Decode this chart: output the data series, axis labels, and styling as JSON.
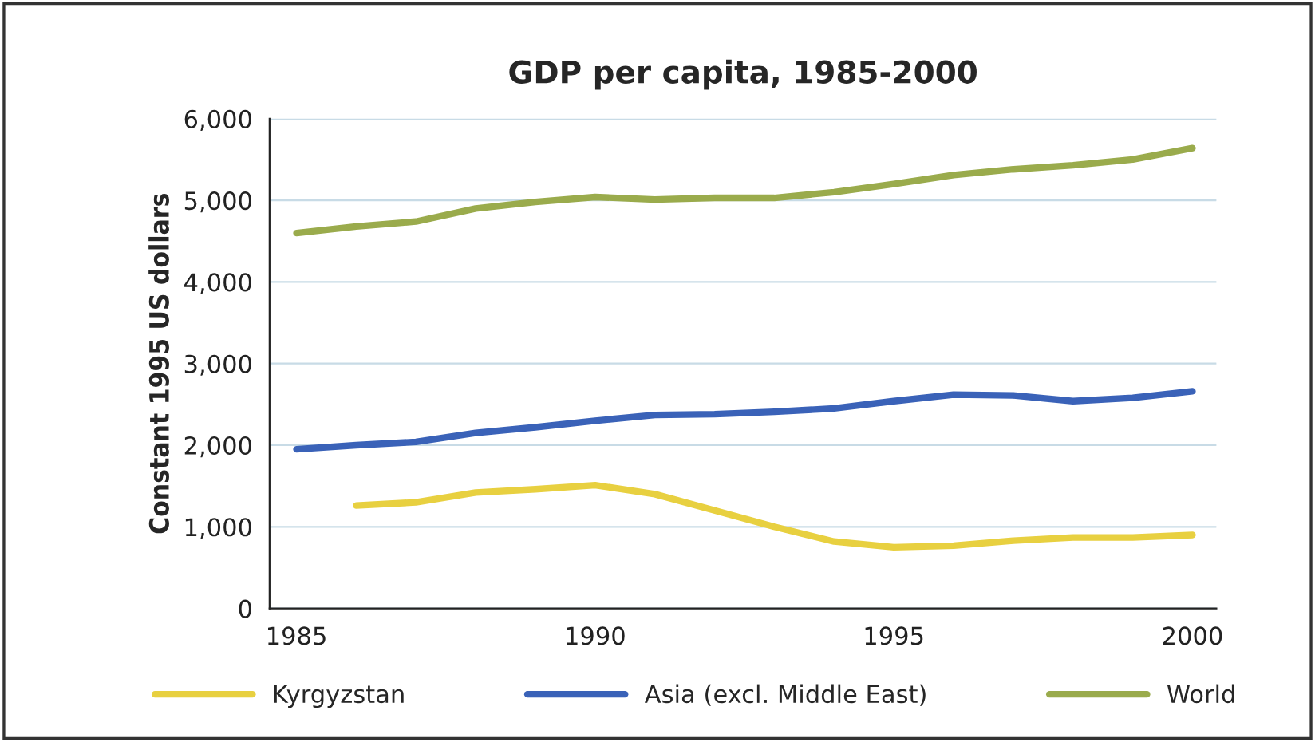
{
  "chart_data": {
    "type": "line",
    "title": "GDP per capita, 1985-2000",
    "ylabel": "Constant 1995 US dollars",
    "x": [
      1985,
      1986,
      1987,
      1988,
      1989,
      1990,
      1991,
      1992,
      1993,
      1994,
      1995,
      1996,
      1997,
      1998,
      1999,
      2000
    ],
    "series": [
      {
        "name": "Kyrgyzstan",
        "color": "#e8d040",
        "values": [
          null,
          1260,
          1300,
          1420,
          1460,
          1510,
          1400,
          1200,
          1000,
          820,
          750,
          770,
          830,
          870,
          870,
          900
        ]
      },
      {
        "name": "Asia (excl. Middle East)",
        "color": "#3a62b8",
        "values": [
          1950,
          2000,
          2040,
          2150,
          2220,
          2300,
          2370,
          2380,
          2410,
          2450,
          2540,
          2620,
          2610,
          2540,
          2580,
          2660
        ]
      },
      {
        "name": "World",
        "color": "#9aab4c",
        "values": [
          4600,
          4680,
          4740,
          4900,
          4980,
          5040,
          5010,
          5030,
          5030,
          5100,
          5200,
          5310,
          5380,
          5430,
          5500,
          5640
        ]
      }
    ],
    "xlim": [
      1984.55,
      2000.4
    ],
    "xticks": [
      1985,
      1990,
      1995,
      2000
    ],
    "ylim": [
      0,
      6000
    ],
    "yticks": [
      0,
      {
        "value": 1000,
        "label": "1,000"
      },
      {
        "value": 2000,
        "label": "2,000"
      },
      {
        "value": 3000,
        "label": "3,000"
      },
      {
        "value": 4000,
        "label": "4,000"
      },
      {
        "value": 5000,
        "label": "5,000"
      },
      {
        "value": 6000,
        "label": "6,000"
      }
    ],
    "grid": "y",
    "legend": "bottom",
    "marker": "none",
    "line_style": "solid"
  }
}
